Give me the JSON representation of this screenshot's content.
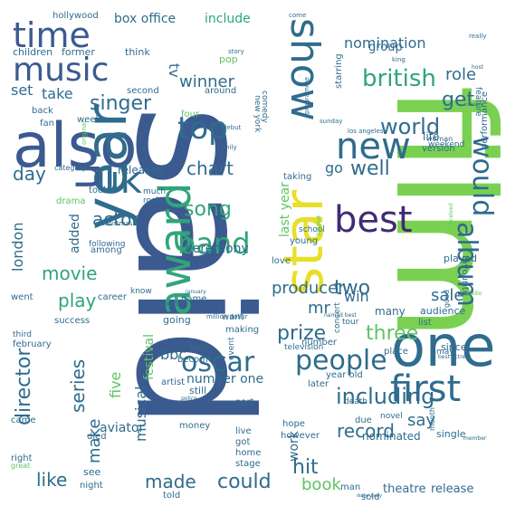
{
  "words": {
    "said": "said",
    "film": "film",
    "also": "also",
    "year": "year",
    "award": "award",
    "one": "one",
    "star": "star",
    "show": "show",
    "music": "music",
    "new": "new",
    "uk": "uk",
    "time": "time",
    "top": "top",
    "best": "best",
    "first": "first",
    "u": "u",
    "album": "album",
    "would": "would",
    "band": "band",
    "people": "people",
    "oscar": "oscar",
    "british": "british",
    "including": "including",
    "director": "director",
    "singer": "singer",
    "world": "world",
    "chart": "chart",
    "movie": "movie",
    "actor": "actor",
    "song": "song",
    "play": "play",
    "made": "made",
    "could": "could",
    "like": "like",
    "hit": "hit",
    "prize": "prize",
    "two": "two",
    "three": "three",
    "well": "well",
    "get": "get",
    "sale": "sale",
    "series": "series",
    "nomination": "nomination",
    "london": "london",
    "day": "day",
    "mr": "mr",
    "record": "record",
    "producer": "producer",
    "say": "say",
    "book": "book",
    "tv": "tv",
    "winner": "winner",
    "box_office": "box office",
    "include": "include",
    "role": "role",
    "last_year": "last year",
    "musical": "musical",
    "five": "five",
    "make": "make",
    "festival": "festival",
    "bbc": "bbc",
    "work": "work",
    "set": "set",
    "take": "take",
    "added": "added",
    "ceremony": "ceremony",
    "released": "released",
    "aviator": "aviator",
    "number_one": "number one",
    "win": "win",
    "go": "go",
    "group": "group",
    "theatre": "theatre",
    "release": "release",
    "nominated": "nominated",
    "many": "many",
    "hollywood": "hollywood",
    "children": "children",
    "former": "former",
    "think": "think",
    "pop": "pop",
    "starring": "starring",
    "comedy": "comedy",
    "new_york": "new york",
    "back": "back",
    "fan": "fan",
    "week": "week",
    "second": "second",
    "around": "around",
    "life": "life",
    "version": "version",
    "performance": "performance",
    "taking": "taking",
    "took": "took",
    "drama": "drama",
    "going": "going",
    "among": "among",
    "love": "love",
    "want": "want",
    "making": "making",
    "name": "name",
    "career": "career",
    "success": "success",
    "went": "went",
    "february": "february",
    "third": "third",
    "held": "held",
    "become": "become",
    "still": "still",
    "part": "part",
    "artist": "artist",
    "came": "came",
    "died": "died",
    "right": "right",
    "see": "see",
    "night": "night",
    "told": "told",
    "stage": "stage",
    "home": "home",
    "live": "live",
    "got": "got",
    "money": "money",
    "place": "place",
    "later": "later",
    "since": "since",
    "audience": "audience",
    "played": "played",
    "single": "single",
    "year_old": "year old",
    "television": "television",
    "hope": "hope",
    "due": "due",
    "however": "however",
    "sold": "sold",
    "man": "man",
    "may": "may",
    "young": "young",
    "school": "school",
    "event": "event",
    "concert": "concert",
    "tour": "tour",
    "death": "death",
    "novel": "novel",
    "favourite": "favourite",
    "los_angeles": "los angeles",
    "sunday": "sunday",
    "act": "act",
    "debut": "debut",
    "woman": "woman",
    "weekend": "weekend",
    "feature": "feature",
    "much": "much",
    "rock": "rock",
    "family": "family",
    "category": "category",
    "original": "original",
    "christmas": "christmas",
    "following": "following",
    "know": "know",
    "great": "great",
    "court": "court",
    "january": "january",
    "million_dollar": "million dollar",
    "named_best": "named best",
    "best_actress": "best actress",
    "studio": "studio",
    "good": "good",
    "list": "list",
    "month": "month",
    "member": "member",
    "dollar_baby": "dollar baby",
    "come": "come",
    "story": "story",
    "king": "king",
    "really": "really",
    "host": "host",
    "industry": "industry",
    "four": "four",
    "programme": "programme",
    "biggest": "biggest",
    "received": "received",
    "people_s": "police",
    "number": "number"
  }
}
